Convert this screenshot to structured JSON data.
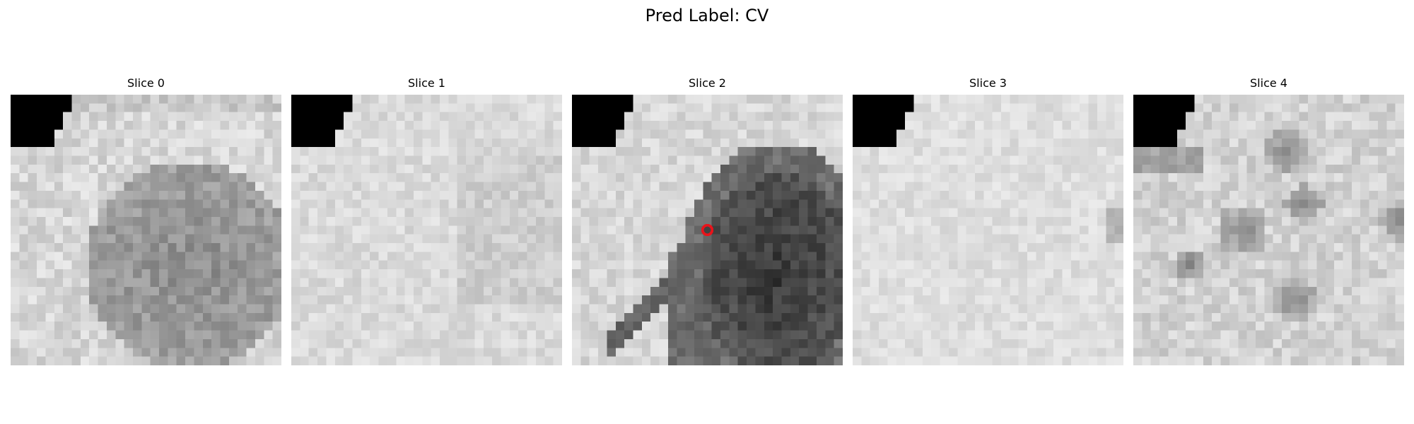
{
  "figure": {
    "title": "Pred Label: CV"
  },
  "slices": [
    {
      "title": "Slice 0"
    },
    {
      "title": "Slice 1"
    },
    {
      "title": "Slice 2"
    },
    {
      "title": "Slice 3"
    },
    {
      "title": "Slice 4"
    }
  ],
  "colors": {
    "marker": "#e8141b",
    "colormap": "gray"
  }
}
